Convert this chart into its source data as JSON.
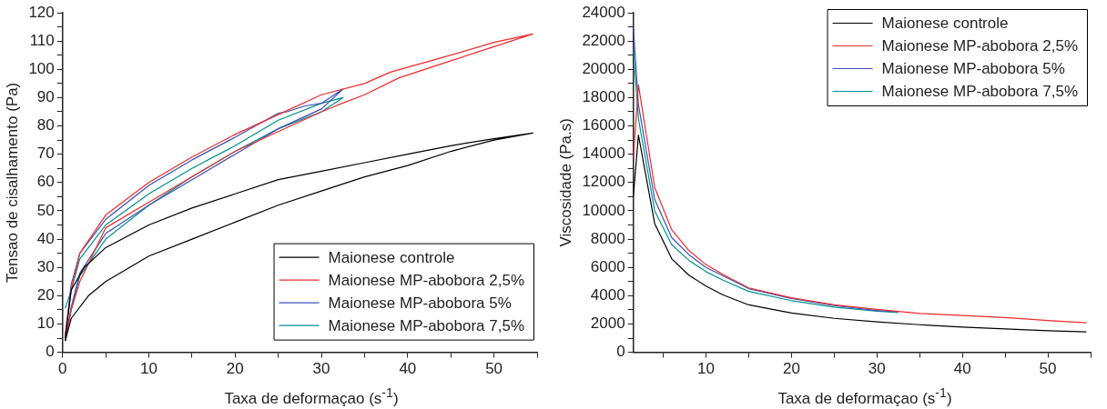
{
  "chart_data": [
    {
      "type": "line",
      "xlabel": "Taxa de deformaçao (s$^{-1}$)",
      "ylabel": "Tensao de cisalhamento (Pa)",
      "xlim": [
        0,
        55
      ],
      "ylim": [
        0,
        120
      ],
      "xticks": [
        0,
        {
          "value": 5,
          "label": null
        },
        10,
        {
          "value": 15,
          "label": null
        },
        20,
        {
          "value": 25,
          "label": null
        },
        30,
        {
          "value": 35,
          "label": null
        },
        40,
        {
          "value": 45,
          "label": null
        },
        50,
        {
          "value": 55,
          "label": null
        }
      ],
      "yticks": [
        0,
        {
          "value": 5,
          "label": null
        },
        10,
        {
          "value": 15,
          "label": null
        },
        20,
        {
          "value": 25,
          "label": null
        },
        30,
        {
          "value": 35,
          "label": null
        },
        40,
        {
          "value": 45,
          "label": null
        },
        50,
        {
          "value": 55,
          "label": null
        },
        60,
        {
          "value": 65,
          "label": null
        },
        70,
        {
          "value": 75,
          "label": null
        },
        80,
        {
          "value": 85,
          "label": null
        },
        90,
        {
          "value": 95,
          "label": null
        },
        100,
        {
          "value": 105,
          "label": null
        },
        110,
        {
          "value": 115,
          "label": null
        },
        120
      ],
      "legend": "bottom right",
      "series": [
        {
          "name": "Maionese controle",
          "color": "#000000",
          "x": [
            0.3,
            1,
            3,
            5,
            10,
            15,
            20,
            25,
            30,
            35,
            40,
            45,
            50,
            54.5,
            50,
            45,
            40,
            35,
            30,
            25,
            20,
            15,
            10,
            5,
            2.5,
            1,
            0.3
          ],
          "values": [
            4,
            12,
            20,
            25,
            34,
            40,
            46,
            52,
            57,
            62,
            66,
            71,
            75,
            77.5,
            75.5,
            73,
            70,
            67,
            64,
            61,
            56,
            51,
            45,
            37,
            30,
            22,
            5
          ]
        },
        {
          "name": "Maionese MP-abobora 2,5%",
          "color": "#ee2a2a",
          "x": [
            0.3,
            1,
            2,
            5,
            10,
            15,
            20,
            25,
            30,
            32,
            35,
            39,
            45,
            50,
            54.5,
            50,
            45,
            38,
            35,
            30,
            25,
            20,
            15,
            10,
            5,
            2,
            1,
            0.3
          ],
          "values": [
            4,
            15,
            25,
            44,
            53,
            62,
            71,
            78,
            85,
            87.5,
            91,
            97,
            103,
            108,
            112.5,
            109.5,
            105,
            99,
            95,
            91,
            84,
            77,
            69,
            60,
            48.5,
            35,
            22,
            5
          ]
        },
        {
          "name": "Maionese MP-abobora 5%",
          "color": "#3a50b8",
          "x": [
            0.3,
            1,
            2,
            5,
            10,
            15,
            20,
            25,
            30,
            32.5,
            30,
            28,
            26,
            25,
            20,
            15,
            10,
            5,
            2,
            1,
            0.3
          ],
          "values": [
            4,
            16,
            28,
            42,
            52,
            61,
            70,
            79,
            86,
            93,
            88,
            87,
            85,
            84.5,
            76,
            68,
            59,
            47,
            35,
            24,
            6
          ]
        },
        {
          "name": "Maionese MP-abobora 7,5%",
          "color": "#009090",
          "x": [
            0.3,
            1,
            2,
            5,
            10,
            15,
            20,
            25,
            30,
            32.5,
            30,
            25,
            20,
            15,
            10,
            5,
            2,
            1,
            0.3
          ],
          "values": [
            4,
            15,
            27,
            40,
            52,
            62,
            71,
            79,
            85,
            90,
            88,
            82,
            73,
            65,
            56,
            45,
            33,
            22,
            15.5
          ]
        }
      ]
    },
    {
      "type": "line",
      "xlabel": "Taxa de deformaçao (s$^{-1}$)",
      "ylabel": "Viscosidade (Pa.s)",
      "xlim": [
        1.5,
        55
      ],
      "ylim": [
        0,
        24000
      ],
      "xticks": [
        {
          "value": 5,
          "label": null
        },
        10,
        {
          "value": 15,
          "label": null
        },
        20,
        {
          "value": 25,
          "label": null
        },
        30,
        {
          "value": 35,
          "label": null
        },
        40,
        {
          "value": 45,
          "label": null
        },
        50,
        {
          "value": 55,
          "label": null
        }
      ],
      "yticks": [
        0,
        {
          "value": 1000,
          "label": null
        },
        2000,
        {
          "value": 3000,
          "label": null
        },
        4000,
        {
          "value": 5000,
          "label": null
        },
        6000,
        {
          "value": 7000,
          "label": null
        },
        8000,
        {
          "value": 9000,
          "label": null
        },
        10000,
        {
          "value": 11000,
          "label": null
        },
        12000,
        {
          "value": 13000,
          "label": null
        },
        14000,
        {
          "value": 15000,
          "label": null
        },
        16000,
        {
          "value": 17000,
          "label": null
        },
        18000,
        {
          "value": 19000,
          "label": null
        },
        20000,
        {
          "value": 21000,
          "label": null
        },
        22000,
        {
          "value": 23000,
          "label": null
        },
        24000
      ],
      "legend": "top right",
      "series": [
        {
          "name": "Maionese controle",
          "color": "#000000",
          "x": [
            1.5,
            2.1,
            4,
            6,
            8,
            10,
            12,
            15,
            20,
            25,
            30,
            35,
            40,
            45,
            50,
            54.5
          ],
          "values": [
            11000,
            15350,
            9100,
            6600,
            5450,
            4680,
            4050,
            3350,
            2780,
            2400,
            2150,
            1950,
            1780,
            1650,
            1520,
            1450
          ]
        },
        {
          "name": "Maionese MP-abobora 2,5%",
          "color": "#ee2a2a",
          "x": [
            1.5,
            2.1,
            4,
            6,
            8,
            10,
            12,
            15,
            20,
            25,
            30,
            35,
            40,
            45,
            50,
            54.5
          ],
          "values": [
            13700,
            18900,
            11650,
            8650,
            7200,
            6200,
            5500,
            4550,
            3850,
            3350,
            3030,
            2750,
            2600,
            2450,
            2250,
            2080
          ]
        },
        {
          "name": "Maionese MP-abobora 5%",
          "color": "#3a50b8",
          "x": [
            1.5,
            2.1,
            4,
            6,
            8,
            10,
            12,
            15,
            20,
            25,
            30,
            32.5
          ],
          "values": [
            23000,
            17500,
            10800,
            8100,
            6900,
            6000,
            5400,
            4500,
            3800,
            3300,
            2950,
            2850
          ]
        },
        {
          "name": "Maionese MP-abobora 7,5%",
          "color": "#009090",
          "x": [
            1.5,
            2.1,
            4,
            6,
            8,
            10,
            12,
            15,
            20,
            25,
            30,
            32.5
          ],
          "values": [
            21400,
            16500,
            10000,
            7600,
            6500,
            5700,
            5100,
            4300,
            3650,
            3200,
            2900,
            2800
          ]
        }
      ]
    }
  ]
}
